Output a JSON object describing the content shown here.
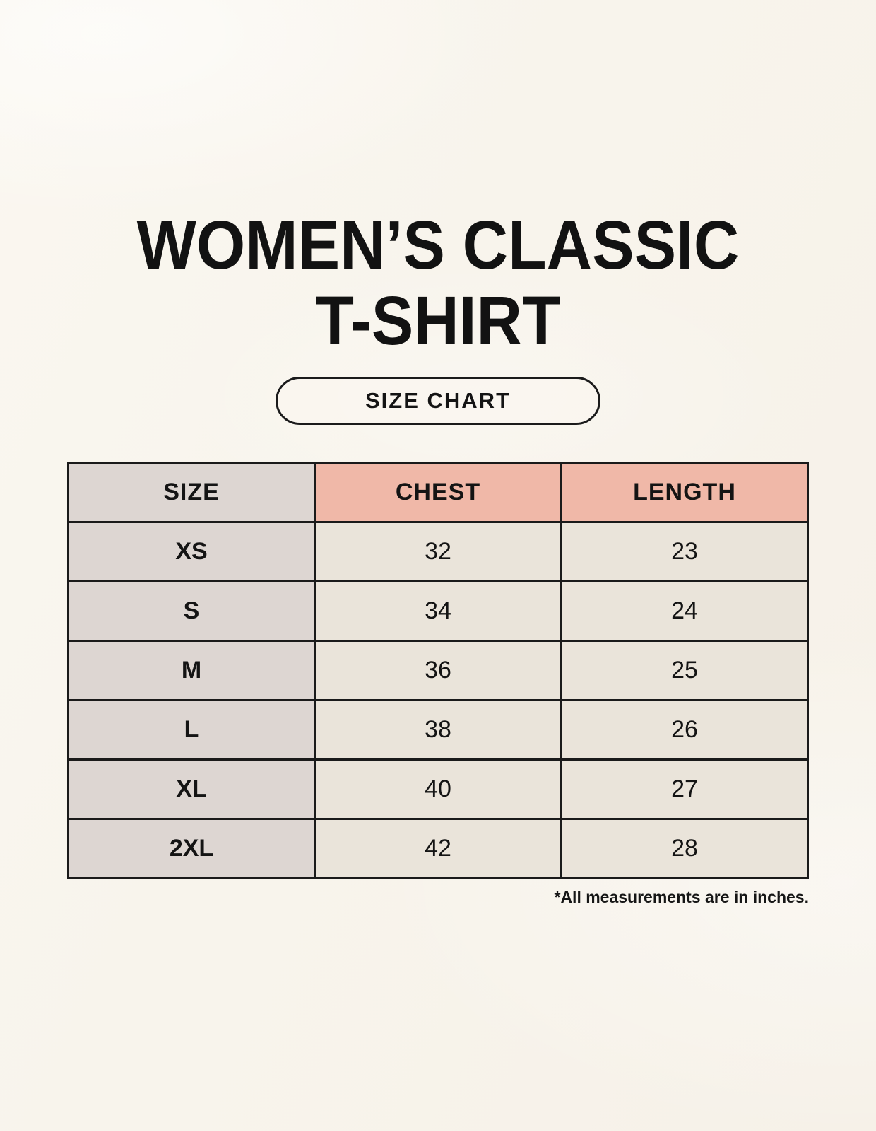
{
  "header": {
    "title_line1": "WOMEN’S CLASSIC",
    "title_line2": "T-SHIRT",
    "size_chart_label": "SIZE CHART"
  },
  "chart_data": {
    "type": "table",
    "title": "WOMEN’S CLASSIC T-SHIRT SIZE CHART",
    "columns": [
      "SIZE",
      "CHEST",
      "LENGTH"
    ],
    "rows": [
      {
        "size": "XS",
        "chest": "32",
        "length": "23"
      },
      {
        "size": "S",
        "chest": "34",
        "length": "24"
      },
      {
        "size": "M",
        "chest": "36",
        "length": "25"
      },
      {
        "size": "L",
        "chest": "38",
        "length": "26"
      },
      {
        "size": "XL",
        "chest": "40",
        "length": "27"
      },
      {
        "size": "2XL",
        "chest": "42",
        "length": "28"
      }
    ],
    "units": "inches"
  },
  "footnote": "*All measurements are in inches.",
  "colors": {
    "background": "#F8F4EC",
    "size_column_bg": "#DDD6D2",
    "measure_header_bg": "#F0B8A8",
    "data_cell_bg": "#EAE4DA",
    "border": "#1A1A1A",
    "text": "#141414"
  }
}
